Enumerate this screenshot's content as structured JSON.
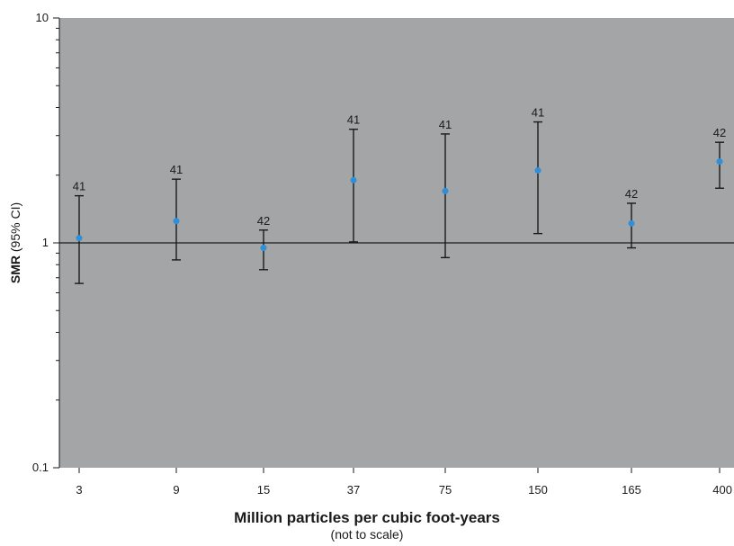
{
  "chart_data": {
    "type": "scatter",
    "xlabel": "Million particles per cubic foot-years",
    "xlabel_note": "(not to scale)",
    "ylabel_bold": "SMR",
    "ylabel_normal": "(95% CI)",
    "y_scale": "log",
    "ylim": [
      0.1,
      10
    ],
    "y_ticks": [
      {
        "value": 0.1,
        "label": "0.1"
      },
      {
        "value": 1,
        "label": "1"
      },
      {
        "value": 10,
        "label": "10"
      }
    ],
    "reference_line": 1,
    "categories": [
      "3",
      "9",
      "15",
      "37",
      "75",
      "150",
      "165",
      "400"
    ],
    "smr": [
      1.05,
      1.25,
      0.95,
      1.9,
      1.7,
      2.1,
      1.22,
      2.3
    ],
    "lower": [
      0.66,
      0.84,
      0.76,
      1.01,
      0.86,
      1.1,
      0.95,
      1.75
    ],
    "upper": [
      1.62,
      1.92,
      1.14,
      3.2,
      3.05,
      3.45,
      1.5,
      2.8
    ],
    "n": [
      "41",
      "41",
      "42",
      "41",
      "41",
      "41",
      "42",
      "42"
    ],
    "grid": false,
    "colors": {
      "plot_background": "#a3a5a7",
      "point": "#2f8fd8",
      "error_bar": "#1a1a1a"
    }
  }
}
